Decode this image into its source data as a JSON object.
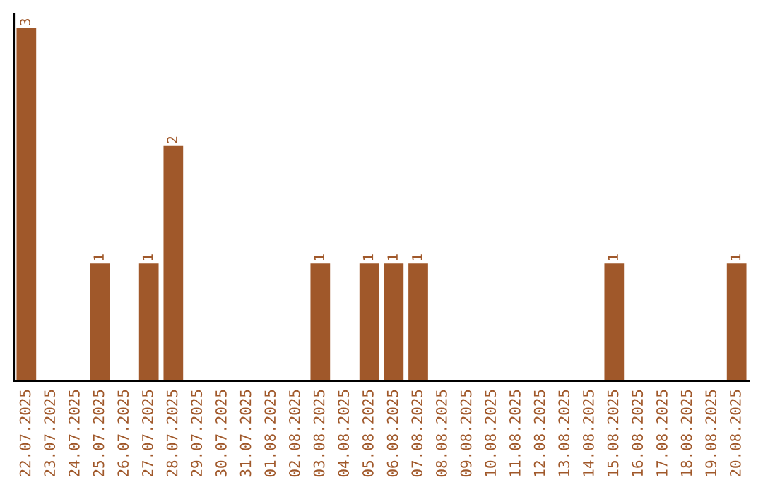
{
  "chart_data": {
    "type": "bar",
    "categories": [
      "22.07.2025",
      "23.07.2025",
      "24.07.2025",
      "25.07.2025",
      "26.07.2025",
      "27.07.2025",
      "28.07.2025",
      "29.07.2025",
      "30.07.2025",
      "31.07.2025",
      "01.08.2025",
      "02.08.2025",
      "03.08.2025",
      "04.08.2025",
      "05.08.2025",
      "06.08.2025",
      "07.08.2025",
      "08.08.2025",
      "09.08.2025",
      "10.08.2025",
      "11.08.2025",
      "12.08.2025",
      "13.08.2025",
      "14.08.2025",
      "15.08.2025",
      "16.08.2025",
      "17.08.2025",
      "18.08.2025",
      "19.08.2025",
      "20.08.2025"
    ],
    "values": [
      3,
      0,
      0,
      1,
      0,
      1,
      2,
      0,
      0,
      0,
      0,
      0,
      1,
      0,
      1,
      1,
      1,
      0,
      0,
      0,
      0,
      0,
      0,
      0,
      1,
      0,
      0,
      0,
      0,
      1
    ],
    "value_labels": [
      "3",
      null,
      null,
      "1",
      null,
      "1",
      "2",
      null,
      null,
      null,
      null,
      null,
      "1",
      null,
      "1",
      "1",
      "1",
      null,
      null,
      null,
      null,
      null,
      null,
      null,
      "1",
      null,
      null,
      null,
      null,
      "1"
    ],
    "color": "#a0582a",
    "ylim": [
      0,
      3.12
    ],
    "tick_labels": "x",
    "grid": false,
    "legend": false
  }
}
